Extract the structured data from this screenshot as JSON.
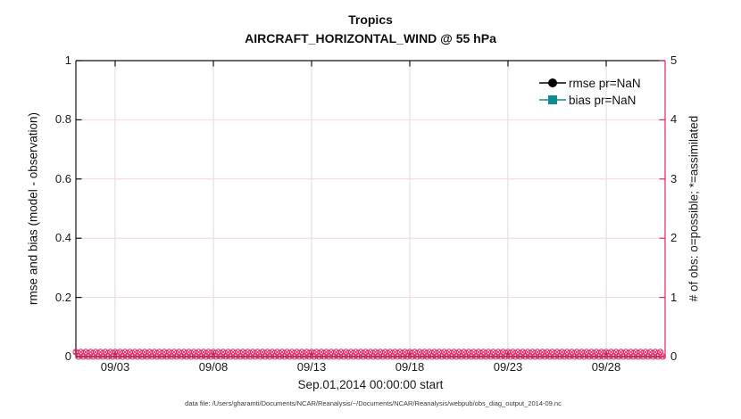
{
  "colors": {
    "pink": "#E32565",
    "teal": "#0F8D8D",
    "black": "#0f0f0f",
    "grid_vertical": "#DBDBDB",
    "grid_horizontal": "#F6D4E2"
  },
  "footer_note": "data file: /Users/gharamti/Documents/NCAR/Reanalysis/~/Documents/NCAR/Reanalysis/webpub/obs_diag_output_2014-09.nc",
  "chart_data": {
    "type": "line",
    "title": "Tropics",
    "subtitle": "AIRCRAFT_HORIZONTAL_WIND @ 55 hPa",
    "grid": true,
    "legend_position": "top-right-inside",
    "x_axis": {
      "label": "Sep.01,2014 00:00:00 start",
      "tick_labels": [
        "09/03",
        "09/08",
        "09/13",
        "09/18",
        "09/23",
        "09/28"
      ],
      "tick_positions_days": [
        2,
        7,
        12,
        17,
        22,
        27
      ],
      "range_days": [
        0,
        30
      ],
      "start": "Sep.01,2014 00:00:00"
    },
    "y_left": {
      "label": "rmse and bias (model - observation)",
      "range": [
        0,
        1
      ],
      "ticks": [
        0,
        0.2,
        0.4,
        0.6,
        0.8,
        1
      ],
      "tick_labels_top_down": [
        "1",
        "0.8",
        "0.6",
        "0.4",
        "0.2",
        "0"
      ],
      "color": "#0f0f0f"
    },
    "y_right": {
      "label": "# of obs: o=possible; *=assimilated",
      "range": [
        0,
        5
      ],
      "ticks": [
        0,
        1,
        2,
        3,
        4,
        5
      ],
      "tick_labels_top_down": [
        "5",
        "4",
        "3",
        "2",
        "1",
        "0"
      ],
      "color": "#E32565"
    },
    "series": [
      {
        "name": "rmse",
        "legend": "rmse pr=NaN",
        "color": "#000000",
        "marker": "filled-circle",
        "axis": "left",
        "values": "NaN"
      },
      {
        "name": "bias",
        "legend": "bias pr=NaN",
        "color": "#0F8D8D",
        "marker": "filled-square",
        "axis": "left",
        "values": "NaN"
      },
      {
        "name": "obs_possible",
        "marker": "o",
        "color": "#E32565",
        "axis": "right",
        "start_day": 0,
        "sample_interval_days": 0.25,
        "count": 120,
        "constant_value": 0
      },
      {
        "name": "obs_assimilated",
        "marker": "*",
        "color": "#E32565",
        "axis": "right",
        "start_day": 0,
        "sample_interval_days": 0.25,
        "count": 120,
        "constant_value": 0
      }
    ]
  }
}
